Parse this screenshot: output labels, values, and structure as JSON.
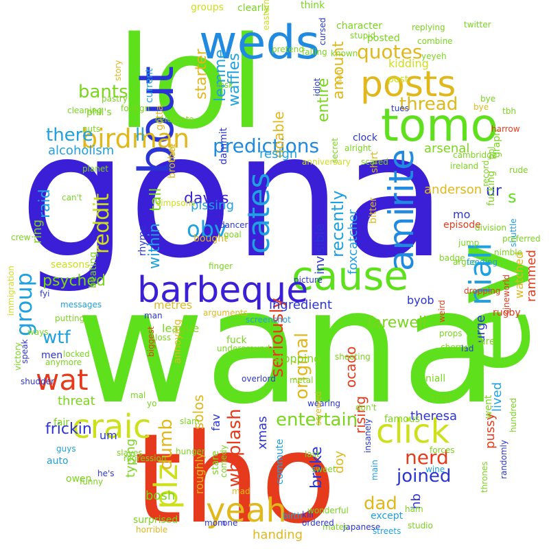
{
  "words": [
    {
      "text": "gona",
      "color": "#3a1fd6"
    },
    {
      "text": "wana",
      "color": "#5ee01c"
    },
    {
      "text": "lol",
      "color": "#5ee01c"
    },
    {
      "text": "tho",
      "color": "#e63a1c"
    },
    {
      "text": "ev",
      "color": "#5ee01c"
    },
    {
      "text": "weds",
      "color": "#1f8ae0"
    },
    {
      "text": "bout",
      "color": "#2a34d4"
    },
    {
      "text": "tomo",
      "color": "#5ee01c"
    },
    {
      "text": "posts",
      "color": "#e0b81c"
    },
    {
      "text": "cause",
      "color": "#5ee01c"
    },
    {
      "text": "barbeque",
      "color": "#3a1fd6"
    },
    {
      "text": "craic",
      "color": "#cde01c"
    },
    {
      "text": "click",
      "color": "#cde01c"
    },
    {
      "text": "yeah",
      "color": "#e0b81c"
    },
    {
      "text": "plz",
      "color": "#cde01c"
    },
    {
      "text": "wat",
      "color": "#e63a1c"
    },
    {
      "text": "amirite",
      "color": "#1f8ae0"
    },
    {
      "text": "niall",
      "color": "#1fa0e0"
    },
    {
      "text": "cates",
      "color": "#1fa0e0"
    },
    {
      "text": "birdman",
      "color": "#e0b81c"
    },
    {
      "text": "predictions",
      "color": "#1f8ae0"
    },
    {
      "text": "group",
      "color": "#1fa0e0"
    },
    {
      "text": "obv",
      "color": "#1fa0e0"
    },
    {
      "text": "daves",
      "color": "#3a1fd6"
    },
    {
      "text": "reddit",
      "color": "#cde01c"
    },
    {
      "text": "wtf",
      "color": "#1fa0e0"
    },
    {
      "text": "quotes",
      "color": "#e0b81c"
    },
    {
      "text": "thread",
      "color": "#e0b81c"
    },
    {
      "text": "bants",
      "color": "#7ad61c"
    },
    {
      "text": "there",
      "color": "#1fa0e0"
    },
    {
      "text": "ll",
      "color": "#1fa0e0"
    },
    {
      "text": "nerd",
      "color": "#e63a1c"
    },
    {
      "text": "joined",
      "color": "#2a34d4"
    },
    {
      "text": "entertain",
      "color": "#7ad61c"
    },
    {
      "text": "seriously",
      "color": "#e63a1c"
    },
    {
      "text": "whiplash",
      "color": "#e63a1c"
    },
    {
      "text": "original",
      "color": "#e0b81c"
    },
    {
      "text": "ingredient",
      "color": "#2a34d4"
    },
    {
      "text": "farewell",
      "color": "#7ad61c"
    },
    {
      "text": "recently",
      "color": "#1fa0e0"
    },
    {
      "text": "dumb",
      "color": "#e0b81c"
    },
    {
      "text": "dad",
      "color": "#e0b81c"
    },
    {
      "text": "frickin",
      "color": "#2a34d4"
    },
    {
      "text": "psyched",
      "color": "#7ad61c"
    },
    {
      "text": "raid",
      "color": "#1fa0e0"
    },
    {
      "text": "within",
      "color": "#1fa0e0"
    },
    {
      "text": "tall",
      "color": "#7ad61c"
    },
    {
      "text": "amount",
      "color": "#e0b81c"
    },
    {
      "text": "starter",
      "color": "#e0b81c"
    },
    {
      "text": "lemme",
      "color": "#1fa0e0"
    },
    {
      "text": "waffles",
      "color": "#1fa0e0"
    },
    {
      "text": "entire",
      "color": "#7ad61c"
    },
    {
      "text": "doable",
      "color": "#e0b81c"
    },
    {
      "text": "alcoholism",
      "color": "#1fa0e0"
    },
    {
      "text": "arsenal",
      "color": "#7ad61c"
    },
    {
      "text": "resign",
      "color": "#1fa0e0"
    },
    {
      "text": "ur",
      "color": "#2a34d4"
    },
    {
      "text": "s",
      "color": "#5ee01c"
    },
    {
      "text": "anderson",
      "color": "#e0b81c"
    },
    {
      "text": "invisible",
      "color": "#2a34d4"
    },
    {
      "text": "foxcatcher",
      "color": "#1fa0e0"
    },
    {
      "text": "urge",
      "color": "#2a34d4"
    },
    {
      "text": "lived",
      "color": "#1fa0e0"
    },
    {
      "text": "rammed",
      "color": "#e63a1c"
    },
    {
      "text": "watched",
      "color": "#e0b81c"
    },
    {
      "text": "pissing",
      "color": "#1fa0e0"
    },
    {
      "text": "bought",
      "color": "#e0b81c"
    },
    {
      "text": "metres",
      "color": "#e0b81c"
    },
    {
      "text": "league",
      "color": "#7ad61c"
    },
    {
      "text": "solos",
      "color": "#e0b81c"
    },
    {
      "text": "typing",
      "color": "#7ad61c"
    },
    {
      "text": "bosh",
      "color": "#7ad61c"
    },
    {
      "text": "handing",
      "color": "#e0b81c"
    },
    {
      "text": "xmas",
      "color": "#2a34d4"
    },
    {
      "text": "broke",
      "color": "#2a34d4"
    },
    {
      "text": "ocado",
      "color": "#e63a1c"
    },
    {
      "text": "rising",
      "color": "#e63a1c"
    },
    {
      "text": "doy",
      "color": "#e0b81c"
    },
    {
      "text": "theresa",
      "color": "#2a34d4"
    },
    {
      "text": "pussy",
      "color": "#e63a1c"
    },
    {
      "text": "hb",
      "color": "#2a34d4"
    },
    {
      "text": "threat",
      "color": "#7ad61c"
    },
    {
      "text": "fav",
      "color": "#2a34d4"
    },
    {
      "text": "roughly",
      "color": "#e0b81c"
    },
    {
      "text": "um",
      "color": "#2a34d4"
    },
    {
      "text": "stopping",
      "color": "#7ad61c"
    },
    {
      "text": "byob",
      "color": "#2a34d4"
    },
    {
      "text": "episode",
      "color": "#e63a1c"
    },
    {
      "text": "fucking",
      "color": "#7ad61c"
    },
    {
      "text": "graph",
      "color": "#7ad61c"
    },
    {
      "text": "mo",
      "color": "#2a34d4"
    },
    {
      "text": "kidding",
      "color": "#cde01c"
    },
    {
      "text": "posted",
      "color": "#7ad61c"
    },
    {
      "text": "character",
      "color": "#7ad61c"
    },
    {
      "text": "clearly",
      "color": "#7ad61c"
    },
    {
      "text": "groups",
      "color": "#cde01c"
    },
    {
      "text": "think",
      "color": "#7ad61c"
    },
    {
      "text": "current",
      "color": "#1fa0e0"
    },
    {
      "text": "dammit",
      "color": "#2a34d4"
    },
    {
      "text": "gotta",
      "color": "#e0b81c"
    },
    {
      "text": "brother",
      "color": "#e0b81c"
    },
    {
      "text": "phil's",
      "color": "#7ad61c"
    },
    {
      "text": "rhyme",
      "color": "#2a34d4"
    },
    {
      "text": "annoying",
      "color": "#e0b81c"
    },
    {
      "text": "fuck",
      "color": "#7ad61c"
    },
    {
      "text": "underground",
      "color": "#7ad61c"
    },
    {
      "text": "ring",
      "color": "#7ad61c"
    },
    {
      "text": "beating",
      "color": "#7ad61c"
    },
    {
      "text": "famous",
      "color": "#7ad61c"
    },
    {
      "text": "chat",
      "color": "#7ad61c"
    },
    {
      "text": "went",
      "color": "#7ad61c"
    },
    {
      "text": "rugby",
      "color": "#e63a1c"
    },
    {
      "text": "fair",
      "color": "#7ad61c"
    },
    {
      "text": "auto",
      "color": "#1fa0e0"
    },
    {
      "text": "owen",
      "color": "#7ad61c"
    },
    {
      "text": "dare",
      "color": "#7ad61c"
    },
    {
      "text": "except",
      "color": "#1fa0e0"
    },
    {
      "text": "surprised",
      "color": "#7ad61c"
    },
    {
      "text": "horrible",
      "color": "#e0b81c"
    },
    {
      "text": "mom",
      "color": "#2a34d4"
    },
    {
      "text": "one",
      "color": "#2a34d4"
    },
    {
      "text": "commute",
      "color": "#1fa0e0"
    },
    {
      "text": "stare",
      "color": "#7ad61c"
    },
    {
      "text": "clock",
      "color": "#2a34d4"
    },
    {
      "text": "secret",
      "color": "#7ad61c"
    },
    {
      "text": "shirt",
      "color": "#e0b81c"
    },
    {
      "text": "bitter",
      "color": "#e0b81c"
    },
    {
      "text": "weird",
      "color": "#e63a1c"
    },
    {
      "text": "shuttle",
      "color": "#1fa0e0"
    },
    {
      "text": "idiot",
      "color": "#2a34d4"
    },
    {
      "text": "post",
      "color": "#cde01c"
    },
    {
      "text": "tues",
      "color": "#2a34d4"
    },
    {
      "text": "bye",
      "color": "#7ad61c"
    },
    {
      "text": "hate",
      "color": "#e0b81c"
    },
    {
      "text": "picture",
      "color": "#2a34d4"
    },
    {
      "text": "screenshot",
      "color": "#1fa0e0"
    },
    {
      "text": "argue",
      "color": "#7ad61c"
    },
    {
      "text": "badge",
      "color": "#7ad61c"
    },
    {
      "text": "seasons",
      "color": "#cde01c"
    },
    {
      "text": "messages",
      "color": "#1fa0e0"
    },
    {
      "text": "putting",
      "color": "#7ad61c"
    },
    {
      "text": "men",
      "color": "#2a34d4"
    },
    {
      "text": "guys",
      "color": "#1fa0e0"
    },
    {
      "text": "can't",
      "color": "#7ad61c"
    },
    {
      "text": "planet",
      "color": "#7ad61c"
    },
    {
      "text": "cleaning",
      "color": "#7ad61c"
    },
    {
      "text": "nuts",
      "color": "#7ad61c"
    },
    {
      "text": "story",
      "color": "#e0b81c"
    },
    {
      "text": "wine",
      "color": "#1fa0e0"
    },
    {
      "text": "niall",
      "color": "#7ad61c"
    },
    {
      "text": "main",
      "color": "#1fa0e0"
    },
    {
      "text": "insanely",
      "color": "#2a34d4"
    },
    {
      "text": "japanese",
      "color": "#2a34d4"
    },
    {
      "text": "streets",
      "color": "#1fa0e0"
    },
    {
      "text": "mates",
      "color": "#7ad61c"
    },
    {
      "text": "ordered",
      "color": "#2a34d4"
    },
    {
      "text": "kill",
      "color": "#2a34d4"
    },
    {
      "text": "wonderful",
      "color": "#7ad61c"
    },
    {
      "text": "comedy",
      "color": "#7ad61c"
    },
    {
      "text": "mad",
      "color": "#e0b81c"
    },
    {
      "text": "slam",
      "color": "#7ad61c"
    },
    {
      "text": "loss",
      "color": "#7ad61c"
    },
    {
      "text": "man",
      "color": "#2a34d4"
    },
    {
      "text": "immigration",
      "color": "#cde01c"
    },
    {
      "text": "fyi",
      "color": "#2a34d4"
    },
    {
      "text": "hundred",
      "color": "#7ad61c"
    },
    {
      "text": "randomly",
      "color": "#2a34d4"
    },
    {
      "text": "thrones",
      "color": "#7ad61c"
    },
    {
      "text": "cineworld",
      "color": "#e63a1c"
    },
    {
      "text": "slaves",
      "color": "#7ad61c"
    },
    {
      "text": "speak",
      "color": "#2a34d4"
    },
    {
      "text": "he's",
      "color": "#2a34d4"
    },
    {
      "text": "victory",
      "color": "#7ad61c"
    },
    {
      "text": "regression",
      "color": "#7ad61c"
    },
    {
      "text": "hunger",
      "color": "#7ad61c"
    },
    {
      "text": "birth",
      "color": "#1fa0e0"
    },
    {
      "text": "sweet",
      "color": "#7ad61c"
    },
    {
      "text": "last",
      "color": "#7ad61c"
    },
    {
      "text": "lad",
      "color": "#2a34d4"
    },
    {
      "text": "cherry",
      "color": "#7ad61c"
    },
    {
      "text": "props",
      "color": "#7ad61c"
    },
    {
      "text": "forces",
      "color": "#7ad61c"
    },
    {
      "text": "ham",
      "color": "#7ad61c"
    },
    {
      "text": "studio",
      "color": "#7ad61c"
    },
    {
      "text": "cambridge",
      "color": "#7ad61c"
    },
    {
      "text": "ireland",
      "color": "#7ad61c"
    },
    {
      "text": "jump",
      "color": "#7ad61c"
    },
    {
      "text": "feeding",
      "color": "#1fa0e0"
    },
    {
      "text": "dropping",
      "color": "#e63a1c"
    },
    {
      "text": "alright",
      "color": "#7ad61c"
    },
    {
      "text": "scared",
      "color": "#7ad61c"
    },
    {
      "text": "anniversary",
      "color": "#cde01c"
    },
    {
      "text": "simpsons",
      "color": "#cde01c"
    },
    {
      "text": "arguments",
      "color": "#e0b81c"
    },
    {
      "text": "stupid",
      "color": "#7ad61c"
    },
    {
      "text": "known",
      "color": "#7ad61c"
    },
    {
      "text": "pretend",
      "color": "#7ad61c"
    },
    {
      "text": "falling",
      "color": "#7ad61c"
    },
    {
      "text": "cursed",
      "color": "#2a34d4"
    },
    {
      "text": "nah",
      "color": "#e0b81c"
    },
    {
      "text": "replying",
      "color": "#7ad61c"
    },
    {
      "text": "combine",
      "color": "#7ad61c"
    },
    {
      "text": "yeyeh",
      "color": "#7ad61c"
    },
    {
      "text": "bye",
      "color": "#e0b81c"
    },
    {
      "text": "tbh",
      "color": "#7ad61c"
    },
    {
      "text": "twitter",
      "color": "#7ad61c"
    },
    {
      "text": "dancer",
      "color": "#2a34d4"
    },
    {
      "text": "goal",
      "color": "#7ad61c"
    },
    {
      "text": "finger",
      "color": "#7ad61c"
    },
    {
      "text": "locked",
      "color": "#7ad61c"
    },
    {
      "text": "ways",
      "color": "#7ad61c"
    },
    {
      "text": "anymore",
      "color": "#7ad61c"
    },
    {
      "text": "funny",
      "color": "#7ad61c"
    },
    {
      "text": "biggest",
      "color": "#e63a1c"
    },
    {
      "text": "mal",
      "color": "#7ad61c"
    },
    {
      "text": "yo",
      "color": "#7ad61c"
    },
    {
      "text": "overlord",
      "color": "#2a34d4"
    },
    {
      "text": "metal",
      "color": "#7ad61c"
    },
    {
      "text": "wearing",
      "color": "#2a34d4"
    },
    {
      "text": "screwed",
      "color": "#e0b81c"
    },
    {
      "text": "shooting",
      "color": "#7ad61c"
    },
    {
      "text": "don't",
      "color": "#7ad61c"
    },
    {
      "text": "preferred",
      "color": "#7ad61c"
    },
    {
      "text": "nimble",
      "color": "#7ad61c"
    },
    {
      "text": "division",
      "color": "#7ad61c"
    },
    {
      "text": "record",
      "color": "#7ad61c"
    },
    {
      "text": "ppl",
      "color": "#7ad61c"
    },
    {
      "text": "harrow",
      "color": "#e63a1c"
    },
    {
      "text": "rude",
      "color": "#7ad61c"
    },
    {
      "text": "eastern",
      "color": "#cde01c"
    },
    {
      "text": "celebrate",
      "color": "#7ad61c"
    },
    {
      "text": "uesk",
      "color": "#7ad61c"
    },
    {
      "text": "pastry",
      "color": "#7ad61c"
    },
    {
      "text": "foreign",
      "color": "#7ad61c"
    },
    {
      "text": "crew",
      "color": "#7ad61c"
    },
    {
      "text": "shudder",
      "color": "#2a34d4"
    }
  ]
}
